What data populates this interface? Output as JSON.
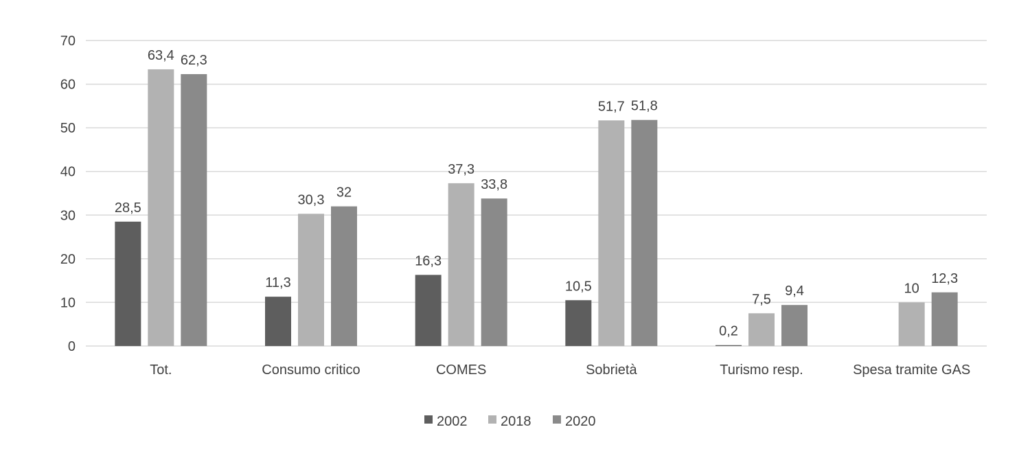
{
  "chart_data": {
    "type": "bar",
    "title": "",
    "xlabel": "",
    "ylabel": "",
    "ylim": [
      0,
      70
    ],
    "yticks": [
      "0",
      "10",
      "20",
      "30",
      "40",
      "50",
      "60",
      "70"
    ],
    "grid": true,
    "legend_position": "bottom",
    "categories": [
      "Tot.",
      "Consumo critico",
      "COMES",
      "Sobrietà",
      "Turismo resp.",
      "Spesa tramite GAS"
    ],
    "series": [
      {
        "name": "2002",
        "color": "#5e5e5e",
        "values": [
          28.5,
          11.3,
          16.3,
          10.5,
          0.2,
          null
        ],
        "labels": [
          "28,5",
          "11,3",
          "16,3",
          "10,5",
          "0,2",
          null
        ]
      },
      {
        "name": "2018",
        "color": "#b2b2b2",
        "values": [
          63.4,
          30.3,
          37.3,
          51.7,
          7.5,
          10
        ],
        "labels": [
          "63,4",
          "30,3",
          "37,3",
          "51,7",
          "7,5",
          "10"
        ]
      },
      {
        "name": "2020",
        "color": "#8a8a8a",
        "values": [
          62.3,
          32,
          33.8,
          51.8,
          9.4,
          12.3
        ],
        "labels": [
          "62,3",
          "32",
          "33,8",
          "51,8",
          "9,4",
          "12,3"
        ]
      }
    ]
  }
}
